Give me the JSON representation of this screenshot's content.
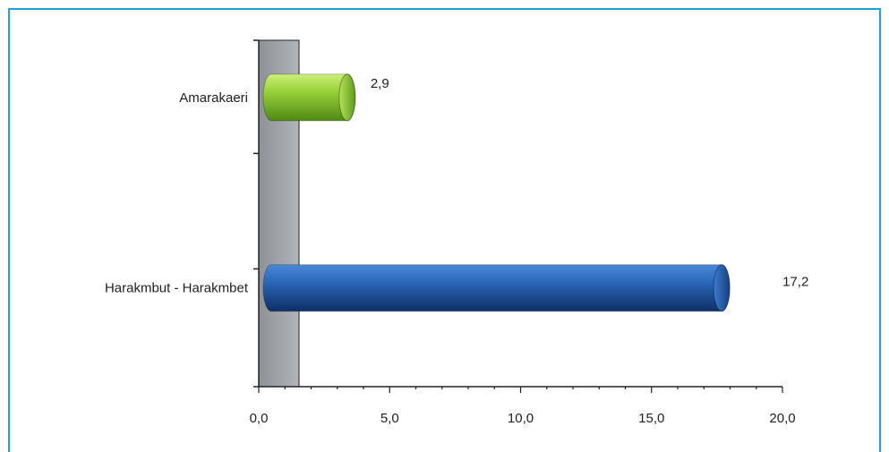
{
  "chart_data": {
    "type": "bar",
    "orientation": "horizontal",
    "style": "3d-cylinder",
    "categories": [
      "Amarakaeri",
      "Harakmbut - Harakmbet"
    ],
    "values": [
      2.9,
      17.2
    ],
    "value_labels": [
      "2,9",
      "17,2"
    ],
    "xlim": [
      0,
      20
    ],
    "x_ticks": [
      0,
      5,
      10,
      15,
      20
    ],
    "x_tick_labels": [
      "0,0",
      "5,0",
      "10,0",
      "15,0",
      "20,0"
    ],
    "colors": [
      "#8cc63f",
      "#2e6dbf"
    ],
    "wall_color": "#9fa3a7",
    "frame_color": "#1fa3e0",
    "title": "",
    "xlabel": "",
    "ylabel": "",
    "grid": false,
    "legend": "none"
  }
}
